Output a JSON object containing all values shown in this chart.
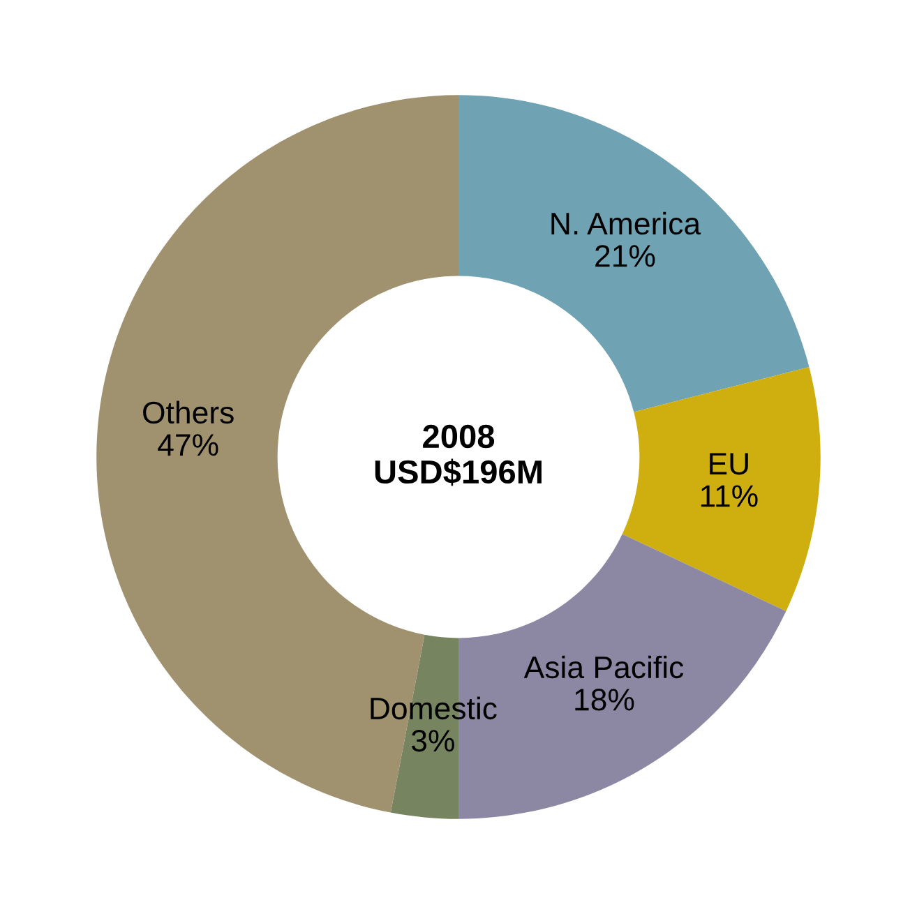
{
  "chart_data": {
    "type": "donut",
    "categories": [
      "N. America",
      "EU",
      "Asia Pacific",
      "Domestic",
      "Others"
    ],
    "values": [
      21,
      11,
      18,
      3,
      47
    ],
    "value_labels": [
      "21%",
      "11%",
      "18%",
      "3%",
      "47%"
    ],
    "colors": [
      "#6fa2b2",
      "#cfae0f",
      "#8c88a4",
      "#76845f",
      "#a0916f"
    ],
    "annotations": [
      "2008",
      "USD$196M"
    ],
    "legend": false
  }
}
